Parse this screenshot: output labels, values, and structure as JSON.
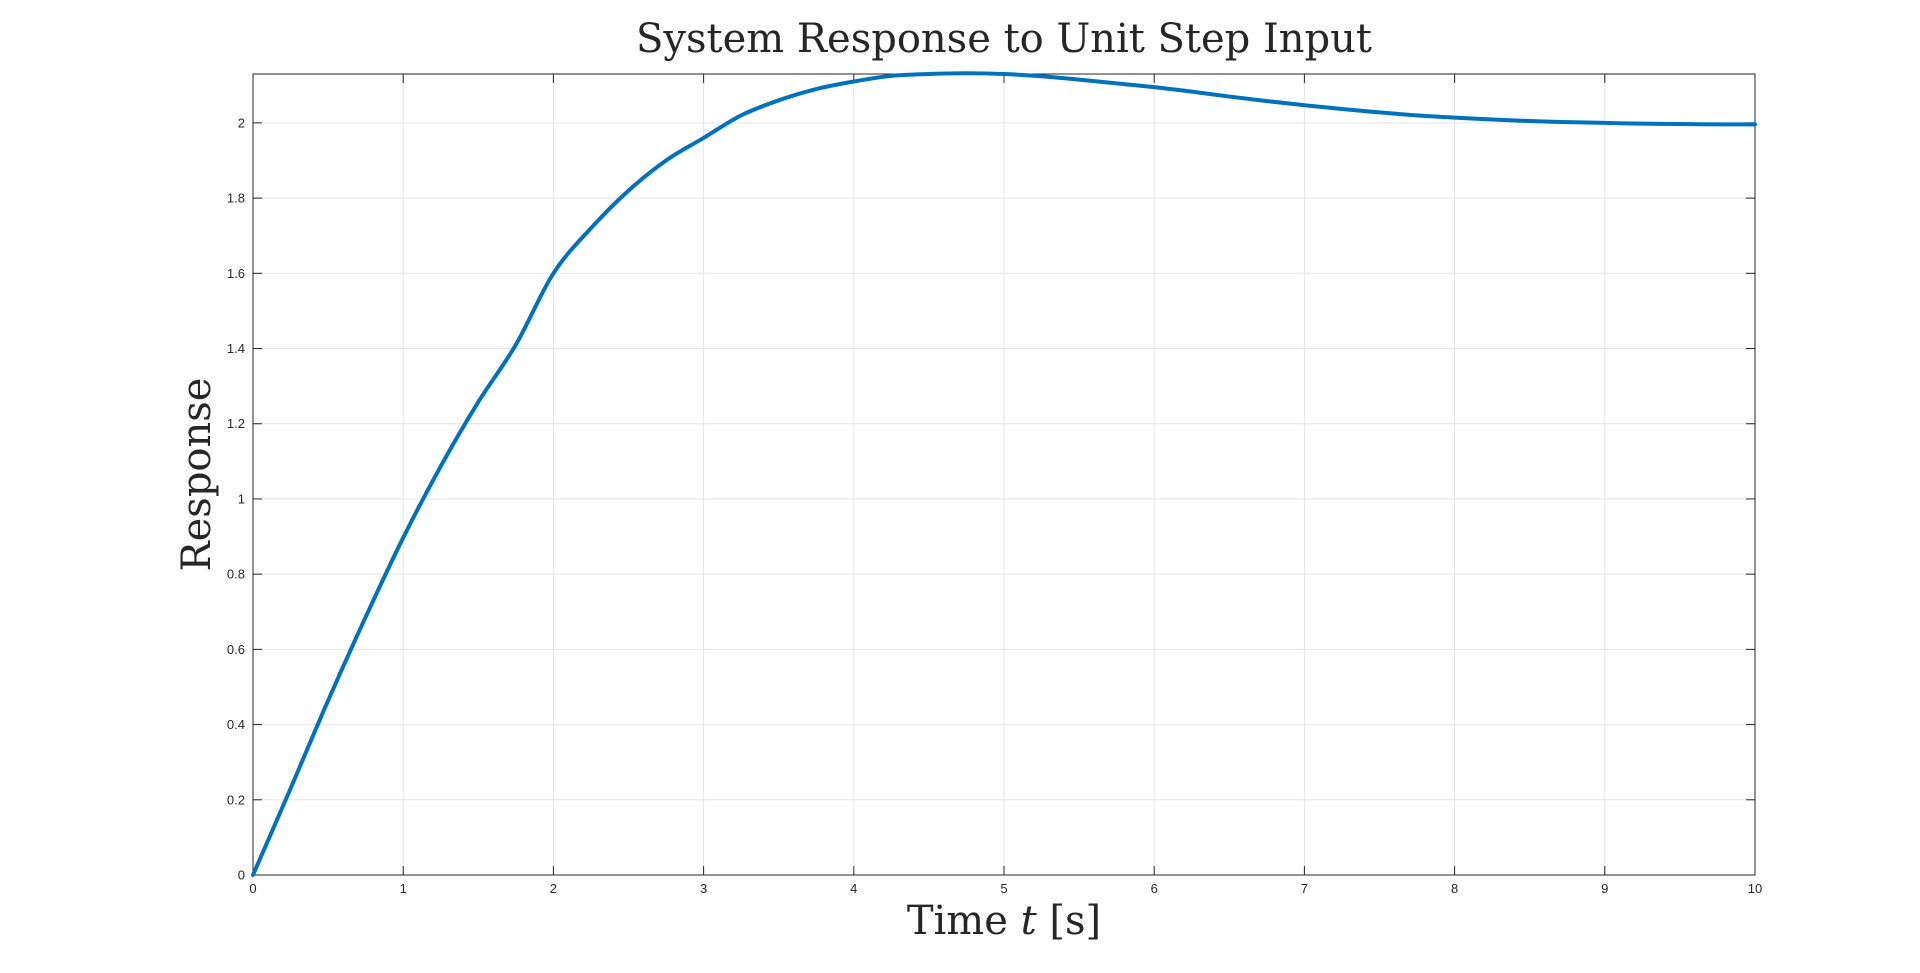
{
  "chart_data": {
    "type": "line",
    "title": "System Response to Unit Step Input",
    "xlabel": {
      "prefix": "Time ",
      "var": "t",
      "suffix": " [s]"
    },
    "ylabel": "Response",
    "xlim": [
      0,
      10
    ],
    "ylim": [
      0,
      2.13
    ],
    "xticks": [
      0,
      1,
      2,
      3,
      4,
      5,
      6,
      7,
      8,
      9,
      10
    ],
    "xtick_labels": [
      "0",
      "1",
      "2",
      "3",
      "4",
      "5",
      "6",
      "7",
      "8",
      "9",
      "10"
    ],
    "yticks": [
      0,
      0.2,
      0.4,
      0.6,
      0.8,
      1,
      1.2,
      1.4,
      1.6,
      1.8,
      2
    ],
    "ytick_labels": [
      "0",
      "0.2",
      "0.4",
      "0.6",
      "0.8",
      "1",
      "1.2",
      "1.4",
      "1.6",
      "1.8",
      "2"
    ],
    "grid": true,
    "legend": false,
    "series": [
      {
        "color": "#0072bd",
        "x": [
          0,
          0.25,
          0.5,
          0.75,
          1,
          1.25,
          1.5,
          1.75,
          2,
          2.25,
          2.5,
          2.75,
          3,
          3.25,
          3.5,
          3.75,
          4,
          4.25,
          4.5,
          4.75,
          5,
          5.25,
          5.5,
          5.75,
          6,
          6.25,
          6.5,
          6.75,
          7,
          7.25,
          7.5,
          7.75,
          8,
          8.25,
          8.5,
          8.75,
          9,
          9.25,
          9.5,
          9.75,
          10
        ],
        "y": [
          0,
          0.23,
          0.464,
          0.686,
          0.897,
          1.087,
          1.258,
          1.41,
          1.6,
          1.72,
          1.82,
          1.9,
          1.96,
          2.02,
          2.06,
          2.09,
          2.11,
          2.125,
          2.13,
          2.132,
          2.13,
          2.124,
          2.115,
          2.105,
          2.095,
          2.083,
          2.07,
          2.058,
          2.047,
          2.037,
          2.028,
          2.02,
          2.014,
          2.009,
          2.005,
          2.002,
          2.0,
          1.998,
          1.997,
          1.996,
          1.996
        ]
      }
    ]
  }
}
